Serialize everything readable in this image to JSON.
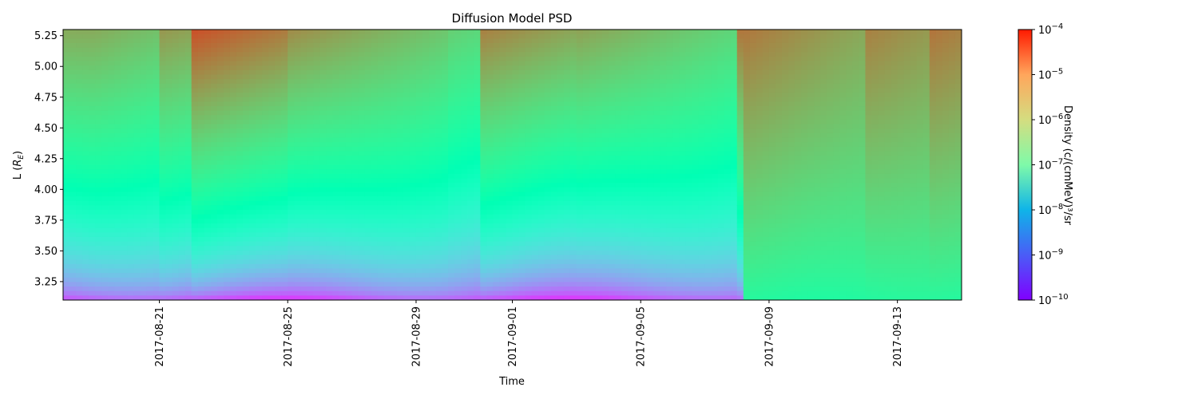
{
  "chart_data": {
    "type": "heatmap",
    "title": "Diffusion Model PSD",
    "xlabel": "Time",
    "ylabel": "L (",
    "ylabel_sub": "E",
    "ylabel_close": ")",
    "x_ticks": [
      "2017-08-21",
      "2017-08-25",
      "2017-08-29",
      "2017-09-01",
      "2017-09-05",
      "2017-09-09",
      "2017-09-13"
    ],
    "x_range": [
      "2017-08-18",
      "2017-09-15"
    ],
    "y_ticks": [
      "3.25",
      "3.50",
      "3.75",
      "4.00",
      "4.25",
      "4.50",
      "4.75",
      "5.00",
      "5.25"
    ],
    "ylim": [
      3.1,
      5.3
    ],
    "colorbar": {
      "label": "Density (c/(cmMeV)³/sr",
      "scale": "log",
      "range": [
        1e-10,
        0.0001
      ],
      "ticks": [
        "10",
        "10",
        "10",
        "10",
        "10",
        "10",
        "10"
      ],
      "tick_exponents": [
        "−10",
        "−9",
        "−8",
        "−7",
        "−6",
        "−5",
        "−4"
      ],
      "colormap": "rainbow"
    },
    "events": [
      {
        "date": "2017-08-19",
        "log_density_outer": -5.4
      },
      {
        "date": "2017-08-21",
        "log_density_outer": -5.2
      },
      {
        "date": "2017-08-22",
        "log_density_outer": -4.6
      },
      {
        "date": "2017-08-25",
        "log_density_outer": -5.1
      },
      {
        "date": "2017-08-30",
        "log_density_outer": -5.8
      },
      {
        "date": "2017-08-31",
        "log_density_outer": -5.0
      },
      {
        "date": "2017-09-03",
        "log_density_outer": -5.3
      },
      {
        "date": "2017-09-08",
        "log_density_outer": -4.9
      },
      {
        "date": "2017-09-12",
        "log_density_outer": -5.0
      },
      {
        "date": "2017-09-14",
        "log_density_outer": -4.9
      }
    ]
  }
}
